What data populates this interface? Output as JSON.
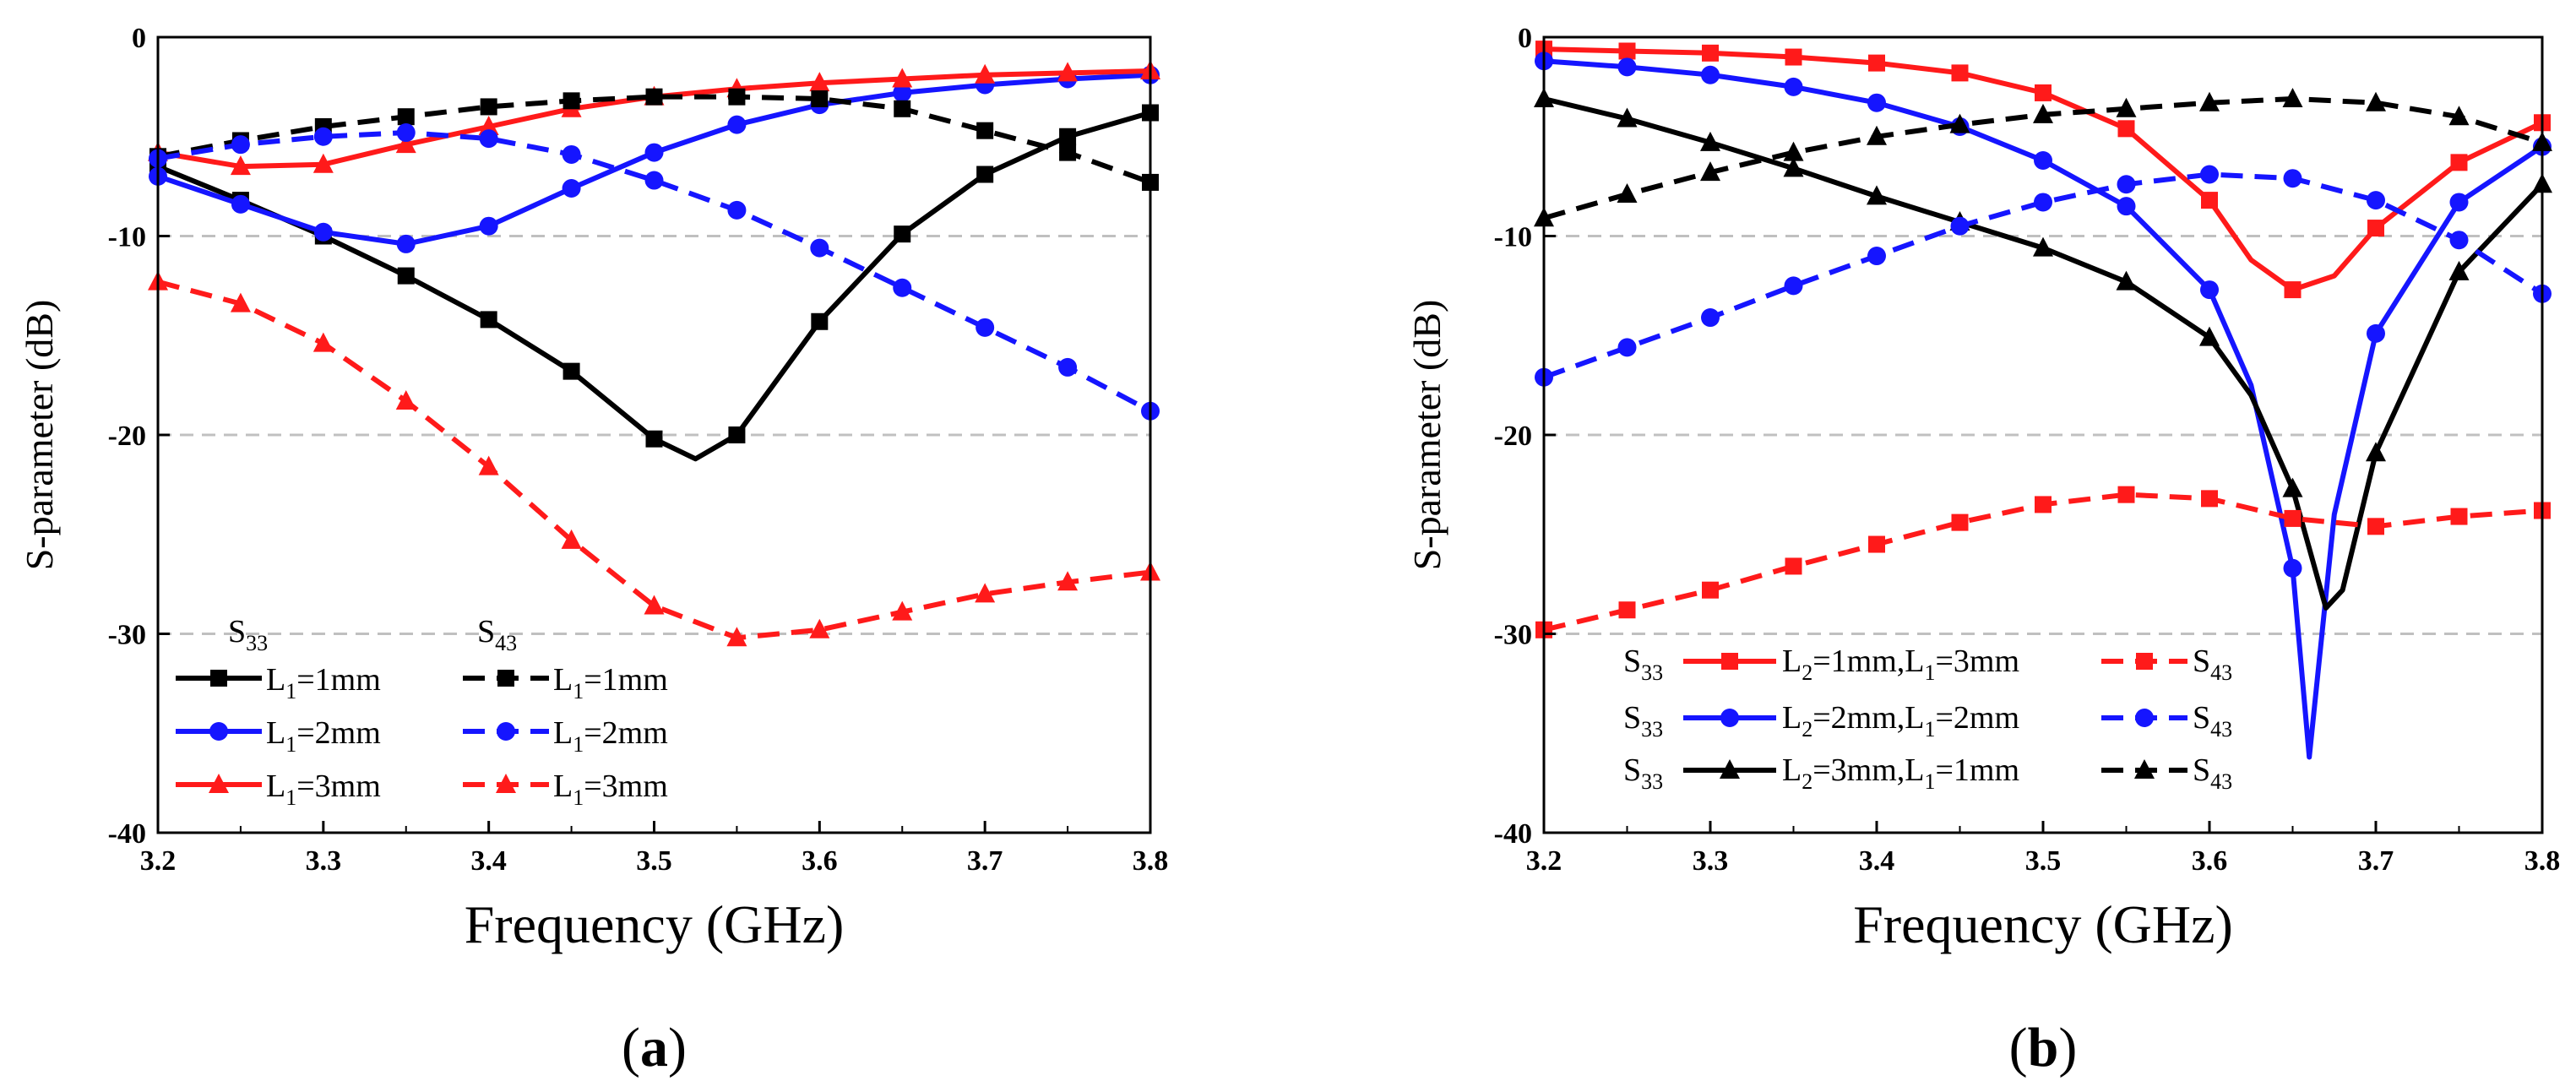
{
  "colors": {
    "black": "#000000",
    "blue": "#1515ff",
    "red": "#ff1a1a",
    "grid": "#c0c0c0"
  },
  "chart_data": [
    {
      "type": "line",
      "panel_label": {
        "open": "(",
        "letter": "a",
        "close": ")"
      },
      "xlabel": "Frequency (GHz)",
      "ylabel": "S-parameter (dB)",
      "xlim": [
        3.2,
        3.8
      ],
      "ylim": [
        -40,
        0
      ],
      "xticks": [
        "3.2",
        "3.3",
        "3.4",
        "3.5",
        "3.6",
        "3.7",
        "3.8"
      ],
      "yticks": [
        "0",
        "-10",
        "-20",
        "-30",
        "-40"
      ],
      "grid": "dashed horizontal at -10, -20, -30",
      "legend": {
        "placement": "bottom-left",
        "header_left": {
          "base": "S",
          "sub": "33"
        },
        "header_right": {
          "base": "S",
          "sub": "43"
        },
        "rows": [
          {
            "left": {
              "pre": "L",
              "sub": "1",
              "post": "=1mm"
            },
            "right": {
              "pre": "L",
              "sub": "1",
              "post": "=1mm"
            }
          },
          {
            "left": {
              "pre": "L",
              "sub": "1",
              "post": "=2mm"
            },
            "right": {
              "pre": "L",
              "sub": "1",
              "post": "=2mm"
            }
          },
          {
            "left": {
              "pre": "L",
              "sub": "1",
              "post": "=3mm"
            },
            "right": {
              "pre": "L",
              "sub": "1",
              "post": "=3mm"
            }
          }
        ]
      },
      "series": [
        {
          "group": "S33",
          "color": "black",
          "dash": "solid",
          "marker": "square",
          "x": [
            3.2,
            3.25,
            3.3,
            3.35,
            3.4,
            3.45,
            3.5,
            3.525,
            3.55,
            3.6,
            3.65,
            3.7,
            3.75,
            3.8
          ],
          "y": [
            -6.5,
            -8.2,
            -10,
            -12,
            -14.2,
            -16.8,
            -20.2,
            -21.2,
            -20,
            -14.3,
            -9.9,
            -6.9,
            -5.0,
            -3.8
          ]
        },
        {
          "group": "S33",
          "color": "blue",
          "dash": "solid",
          "marker": "circle",
          "x": [
            3.2,
            3.25,
            3.3,
            3.35,
            3.4,
            3.45,
            3.5,
            3.55,
            3.6,
            3.65,
            3.7,
            3.75,
            3.8
          ],
          "y": [
            -7.0,
            -8.4,
            -9.8,
            -10.4,
            -9.5,
            -7.6,
            -5.8,
            -4.4,
            -3.4,
            -2.8,
            -2.4,
            -2.1,
            -1.9
          ]
        },
        {
          "group": "S33",
          "color": "red",
          "dash": "solid",
          "marker": "triangle",
          "x": [
            3.2,
            3.25,
            3.3,
            3.35,
            3.4,
            3.45,
            3.5,
            3.55,
            3.6,
            3.65,
            3.7,
            3.75,
            3.8
          ],
          "y": [
            -5.8,
            -6.5,
            -6.4,
            -5.4,
            -4.5,
            -3.6,
            -3.0,
            -2.6,
            -2.3,
            -2.1,
            -1.9,
            -1.8,
            -1.7
          ]
        },
        {
          "group": "S43",
          "color": "black",
          "dash": "dashed",
          "marker": "square",
          "x": [
            3.2,
            3.25,
            3.3,
            3.35,
            3.4,
            3.45,
            3.5,
            3.55,
            3.6,
            3.65,
            3.7,
            3.75,
            3.8
          ],
          "y": [
            -6.0,
            -5.2,
            -4.5,
            -4.0,
            -3.5,
            -3.2,
            -3.0,
            -3.0,
            -3.1,
            -3.6,
            -4.7,
            -5.8,
            -7.3
          ]
        },
        {
          "group": "S43",
          "color": "blue",
          "dash": "dashed",
          "marker": "circle",
          "x": [
            3.2,
            3.25,
            3.3,
            3.35,
            3.4,
            3.45,
            3.5,
            3.55,
            3.6,
            3.65,
            3.7,
            3.75,
            3.8
          ],
          "y": [
            -6.1,
            -5.4,
            -5.0,
            -4.8,
            -5.1,
            -5.9,
            -7.2,
            -8.7,
            -10.6,
            -12.6,
            -14.6,
            -16.6,
            -18.8
          ]
        },
        {
          "group": "S43",
          "color": "red",
          "dash": "dashed",
          "marker": "triangle",
          "x": [
            3.2,
            3.25,
            3.3,
            3.35,
            3.4,
            3.45,
            3.5,
            3.55,
            3.6,
            3.65,
            3.7,
            3.75,
            3.8
          ],
          "y": [
            -12.3,
            -13.4,
            -15.4,
            -18.3,
            -21.6,
            -25.3,
            -28.6,
            -30.2,
            -29.8,
            -28.9,
            -28.0,
            -27.4,
            -26.9
          ]
        }
      ]
    },
    {
      "type": "line",
      "panel_label": {
        "open": "(",
        "letter": "b",
        "close": ")"
      },
      "xlabel": "Frequency (GHz)",
      "ylabel": "S-parameter (dB)",
      "xlim": [
        3.2,
        3.8
      ],
      "ylim": [
        -40,
        0
      ],
      "xticks": [
        "3.2",
        "3.3",
        "3.4",
        "3.5",
        "3.6",
        "3.7",
        "3.8"
      ],
      "yticks": [
        "0",
        "-10",
        "-20",
        "-30",
        "-40"
      ],
      "grid": "dashed horizontal at -10, -20, -30",
      "legend": {
        "placement": "bottom-left",
        "rows": [
          {
            "left": {
              "base": "S",
              "sub": "33"
            },
            "mid": {
              "a": "L",
              "asub": "2",
              "b": "=1mm,L",
              "bsub": "1",
              "c": "=3mm"
            },
            "right": {
              "base": "S",
              "sub": "43"
            }
          },
          {
            "left": {
              "base": "S",
              "sub": "33"
            },
            "mid": {
              "a": "L",
              "asub": "2",
              "b": "=2mm,L",
              "bsub": "1",
              "c": "=2mm"
            },
            "right": {
              "base": "S",
              "sub": "43"
            }
          },
          {
            "left": {
              "base": "S",
              "sub": "33"
            },
            "mid": {
              "a": "L",
              "asub": "2",
              "b": "=3mm,L",
              "bsub": "1",
              "c": "=1mm"
            },
            "right": {
              "base": "S",
              "sub": "43"
            }
          }
        ]
      },
      "series": [
        {
          "group": "S33",
          "color": "red",
          "dash": "solid",
          "marker": "square",
          "x": [
            3.2,
            3.25,
            3.3,
            3.35,
            3.4,
            3.45,
            3.5,
            3.55,
            3.6,
            3.625,
            3.65,
            3.675,
            3.7,
            3.75,
            3.8
          ],
          "y": [
            -0.6,
            -0.7,
            -0.8,
            -1.0,
            -1.3,
            -1.8,
            -2.8,
            -4.6,
            -8.2,
            -11.2,
            -12.7,
            -12.0,
            -9.6,
            -6.3,
            -4.3
          ]
        },
        {
          "group": "S33",
          "color": "blue",
          "dash": "solid",
          "marker": "circle",
          "x": [
            3.2,
            3.25,
            3.3,
            3.35,
            3.4,
            3.45,
            3.5,
            3.55,
            3.6,
            3.625,
            3.65,
            3.66,
            3.675,
            3.7,
            3.75,
            3.8
          ],
          "y": [
            -1.2,
            -1.5,
            -1.9,
            -2.5,
            -3.3,
            -4.5,
            -6.2,
            -8.5,
            -12.7,
            -17.5,
            -26.7,
            -36.2,
            -24.0,
            -14.9,
            -8.3,
            -5.5
          ]
        },
        {
          "group": "S33",
          "color": "black",
          "dash": "solid",
          "marker": "triangle",
          "x": [
            3.2,
            3.25,
            3.3,
            3.35,
            3.4,
            3.45,
            3.5,
            3.55,
            3.6,
            3.625,
            3.65,
            3.67,
            3.68,
            3.7,
            3.75,
            3.8
          ],
          "y": [
            -3.1,
            -4.1,
            -5.3,
            -6.6,
            -8.0,
            -9.3,
            -10.6,
            -12.3,
            -15.1,
            -18.0,
            -22.7,
            -28.7,
            -27.8,
            -20.9,
            -11.8,
            -7.4
          ]
        },
        {
          "group": "S43",
          "color": "red",
          "dash": "dashed",
          "marker": "square",
          "x": [
            3.2,
            3.25,
            3.3,
            3.35,
            3.4,
            3.45,
            3.5,
            3.55,
            3.6,
            3.65,
            3.7,
            3.75,
            3.8
          ],
          "y": [
            -29.8,
            -28.8,
            -27.8,
            -26.6,
            -25.5,
            -24.4,
            -23.5,
            -23.0,
            -23.2,
            -24.2,
            -24.6,
            -24.1,
            -23.8
          ]
        },
        {
          "group": "S43",
          "color": "blue",
          "dash": "dashed",
          "marker": "circle",
          "x": [
            3.2,
            3.25,
            3.3,
            3.35,
            3.4,
            3.45,
            3.5,
            3.55,
            3.6,
            3.65,
            3.7,
            3.75,
            3.8
          ],
          "y": [
            -17.1,
            -15.6,
            -14.1,
            -12.5,
            -11.0,
            -9.5,
            -8.3,
            -7.4,
            -6.9,
            -7.1,
            -8.2,
            -10.2,
            -12.9
          ]
        },
        {
          "group": "S43",
          "color": "black",
          "dash": "dashed",
          "marker": "triangle",
          "x": [
            3.2,
            3.25,
            3.3,
            3.35,
            3.4,
            3.45,
            3.5,
            3.55,
            3.6,
            3.65,
            3.7,
            3.75,
            3.8
          ],
          "y": [
            -9.1,
            -7.9,
            -6.8,
            -5.8,
            -5.0,
            -4.4,
            -3.9,
            -3.6,
            -3.3,
            -3.1,
            -3.3,
            -4.0,
            -5.3
          ]
        }
      ]
    }
  ]
}
